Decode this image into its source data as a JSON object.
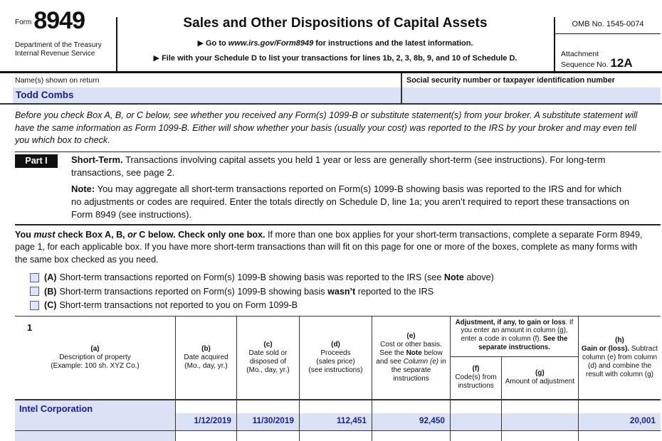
{
  "form": {
    "form_label": "Form",
    "form_number": "8949",
    "agency_line1": "Department of the Treasury",
    "agency_line2": "Internal Revenue Service",
    "title": "Sales and Other Dispositions of Capital Assets",
    "instruction1_prefix": "▶ Go to ",
    "instruction1_url": "www.irs.gov/Form8949",
    "instruction1_suffix": " for instructions and the latest information.",
    "instruction2": "▶ File with your Schedule D to list your transactions for lines 1b, 2, 3, 8b, 9, and 10 of Schedule D.",
    "omb": "OMB No. 1545-0074",
    "attachment_line1": "Attachment",
    "attachment_line2": "Sequence No. ",
    "attachment_number": "12A"
  },
  "name_row": {
    "name_label": "Name(s) shown on return",
    "name_value": "Todd Combs",
    "ssn_label": "Social security number or taxpayer identification number",
    "ssn_value": ""
  },
  "intro": "Before you check Box A, B, or C below, see whether you received any Form(s) 1099-B or substitute statement(s) from your broker. A substitute statement will have the same information as Form 1099-B. Either will show whether your basis (usually your cost) was reported to the IRS by your broker and may even tell you which box to check.",
  "part1": {
    "badge": "Part I",
    "heading": "Short-Term.",
    "heading_text": " Transactions involving capital assets you held 1 year or less are generally short-term (see instructions). For long-term transactions, see page 2.",
    "note_label": "Note:",
    "note_text": " You may aggregate all short-term transactions reported on Form(s) 1099-B showing basis was reported to the IRS and for which no adjustments or codes are required. Enter the totals directly on Schedule D, line 1a; you aren’t required to report these transactions on Form 8949 (see instructions)."
  },
  "check_instructions": {
    "b1": "You ",
    "bi1": "must",
    "b2": " check Box A, B, ",
    "bi2": "or",
    "b3": " C below. Check only one box.",
    "rest": " If more than one box applies for your short-term transactions, complete a separate Form 8949, page 1, for each applicable box. If you have more short-term transactions than will fit on this page for one or more of the boxes, complete as many forms with the same box checked as you need."
  },
  "checkboxes": {
    "a": {
      "letter": "(A)",
      "pre": "Short-term transactions reported on Form(s) 1099-B showing basis was reported to the IRS (see ",
      "bold": "Note",
      "post": " above)"
    },
    "b": {
      "letter": "(B)",
      "pre": "Short-term transactions reported on Form(s) 1099-B showing basis ",
      "bold": "wasn’t",
      "post": " reported to the IRS"
    },
    "c": {
      "letter": "(C)",
      "pre": "Short-term transactions not reported to you on Form 1099-B",
      "bold": "",
      "post": ""
    }
  },
  "table": {
    "row_number": "1",
    "headers": {
      "a_tag": "(a)",
      "a_l1": "Description of property",
      "a_l2": "(Example: 100 sh. XYZ Co.)",
      "b_tag": "(b)",
      "b_l1": "Date acquired",
      "b_l2": "(Mo., day, yr.)",
      "c_tag": "(c)",
      "c_l1": "Date sold or disposed of",
      "c_l2": "(Mo., day, yr.)",
      "d_tag": "(d)",
      "d_l1": "Proceeds",
      "d_l2": "(sales price)",
      "d_l3": "(see instructions)",
      "e_tag": "(e)",
      "e_t1": "Cost or other basis. See the ",
      "e_bold": "Note",
      "e_t2": " below and see ",
      "e_italic": "Column (e)",
      "e_t3": " in the separate instructions",
      "adj_bold1": "Adjustment, if any, to gain or loss",
      "adj_t1": ". If you enter an amount in column (g), enter a code in column (f). ",
      "adj_bold2": "See the separate instructions.",
      "f_tag": "(f)",
      "f_l1": "Code(s) from instructions",
      "g_tag": "(g)",
      "g_l1": "Amount of adjustment",
      "h_tag": "(h)",
      "h_bold": "Gain or (loss).",
      "h_t1": " Subtract column (e) from column (d) and combine the result with column (g)"
    },
    "rows": [
      {
        "description": "Intel Corporation",
        "date_acquired": "1/12/2019",
        "date_sold": "11/30/2019",
        "proceeds": "112,451",
        "cost": "92,450",
        "code": "",
        "adjustment": "",
        "gain": "20,001"
      },
      {
        "description": "",
        "date_acquired": "",
        "date_sold": "",
        "proceeds": "",
        "cost": "",
        "code": "",
        "adjustment": "",
        "gain": ""
      }
    ]
  },
  "colors": {
    "field_blue": "#dbe2f6",
    "value_navy": "#1b1f8e",
    "checkbox_blue": "#dce4f8"
  }
}
